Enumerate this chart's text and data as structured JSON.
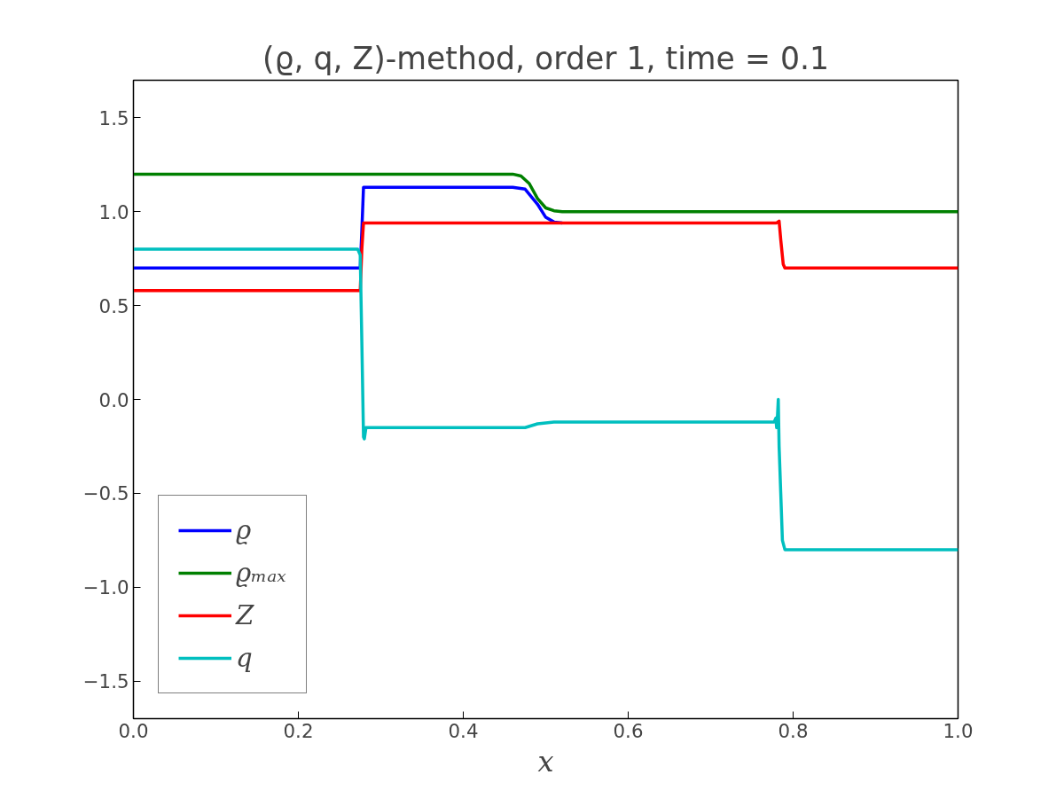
{
  "chart_data": {
    "type": "line",
    "title": "(ϱ, q, Z)-method, order 1, time = 0.1",
    "xlabel": "x",
    "xlim": [
      0.0,
      1.0
    ],
    "ylim": [
      -1.7,
      1.7
    ],
    "xticks": [
      {
        "value": 0.0,
        "label": "0.0"
      },
      0.2,
      0.4,
      0.6,
      0.8,
      {
        "value": 1.0,
        "label": "1.0"
      }
    ],
    "yticks": [
      {
        "value": -1.5,
        "label": "−1.5"
      },
      {
        "value": -1.0,
        "label": "−1.0"
      },
      {
        "value": -0.5,
        "label": "−0.5"
      },
      {
        "value": 0.0,
        "label": "0.0"
      },
      0.5,
      {
        "value": 1.0,
        "label": "1.0"
      },
      1.5
    ],
    "grid": false,
    "legend": "bottom left",
    "line_style": "solid",
    "marker": "none",
    "series": [
      {
        "name": "ϱ",
        "color": "#0000ff",
        "x": [
          0.0,
          0.275,
          0.277,
          0.279,
          0.3,
          0.46,
          0.475,
          0.49,
          0.5,
          0.51,
          0.52
        ],
        "values": [
          0.7,
          0.7,
          0.9,
          1.13,
          1.13,
          1.13,
          1.12,
          1.04,
          0.97,
          0.945,
          0.94
        ]
      },
      {
        "name": "ϱₘₐₓ",
        "color": "#008000",
        "x": [
          0.0,
          0.46,
          0.47,
          0.48,
          0.49,
          0.5,
          0.51,
          0.52,
          1.0
        ],
        "values": [
          1.2,
          1.2,
          1.19,
          1.15,
          1.07,
          1.02,
          1.005,
          1.0,
          1.0
        ]
      },
      {
        "name": "Z",
        "color": "#ff0000",
        "x": [
          0.0,
          0.275,
          0.277,
          0.279,
          0.3,
          0.78,
          0.783,
          0.785,
          0.788,
          0.79,
          1.0
        ],
        "values": [
          0.58,
          0.58,
          0.8,
          0.94,
          0.94,
          0.94,
          0.95,
          0.85,
          0.72,
          0.7,
          0.7
        ]
      },
      {
        "name": "q",
        "color": "#00bfbf",
        "x": [
          0.0,
          0.272,
          0.275,
          0.277,
          0.279,
          0.28,
          0.282,
          0.285,
          0.3,
          0.46,
          0.475,
          0.49,
          0.51,
          0.777,
          0.779,
          0.78,
          0.781,
          0.782,
          0.783,
          0.785,
          0.787,
          0.79,
          1.0
        ],
        "values": [
          0.8,
          0.8,
          0.77,
          0.3,
          -0.2,
          -0.21,
          -0.15,
          -0.15,
          -0.15,
          -0.15,
          -0.15,
          -0.13,
          -0.12,
          -0.12,
          -0.1,
          -0.15,
          -0.09,
          0.0,
          -0.25,
          -0.5,
          -0.75,
          -0.8,
          -0.8
        ]
      }
    ]
  }
}
